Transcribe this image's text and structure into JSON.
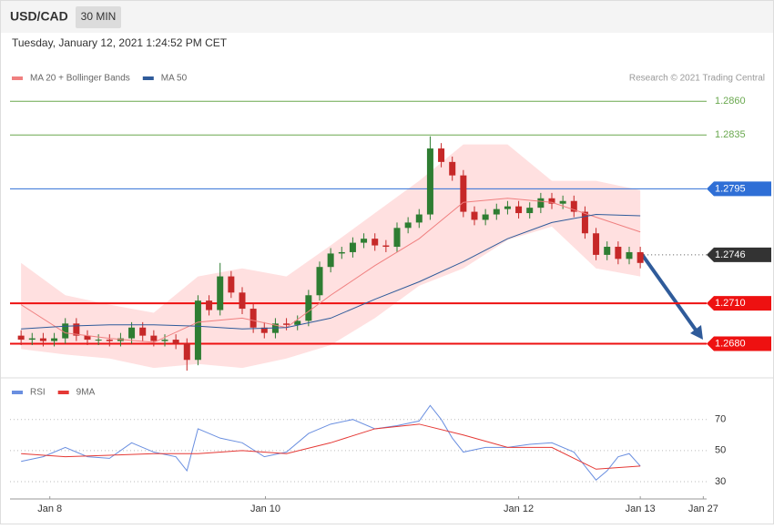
{
  "header": {
    "symbol": "USD/CAD",
    "interval": "30 MIN",
    "timestamp": "Tuesday, January 12, 2021 1:24:52 PM CET",
    "credit": "Research © 2021 Trading Central"
  },
  "chart_data": [
    {
      "type": "candlestick",
      "xlim": [
        -1,
        62
      ],
      "ylim": [
        1.2656,
        1.2869
      ],
      "up_color": "#2e7d32",
      "down_color": "#c62828",
      "open": [
        1.2686,
        1.2683,
        1.2684,
        1.2682,
        1.2684,
        1.2695,
        1.2686,
        1.2683,
        1.2683,
        1.2682,
        1.2684,
        1.2692,
        1.2686,
        1.2682,
        1.2683,
        1.268,
        1.2668,
        1.2712,
        1.2705,
        1.273,
        1.2718,
        1.2706,
        1.2692,
        1.2688,
        1.2695,
        1.2694,
        1.2697,
        1.2716,
        1.2737,
        1.2747,
        1.2748,
        1.2755,
        1.2758,
        1.2753,
        1.2752,
        1.2766,
        1.277,
        1.2776,
        1.2825,
        1.2815,
        1.2805,
        1.2778,
        1.2772,
        1.2776,
        1.278,
        1.2782,
        1.2777,
        1.2781,
        1.2788,
        1.2784,
        1.2786,
        1.2778,
        1.2762,
        1.2746,
        1.2752,
        1.2743,
        1.2748
      ],
      "high": [
        1.269,
        1.2688,
        1.2688,
        1.2688,
        1.2699,
        1.2699,
        1.269,
        1.2687,
        1.2687,
        1.2688,
        1.2696,
        1.2696,
        1.269,
        1.2687,
        1.2687,
        1.2684,
        1.2716,
        1.2716,
        1.274,
        1.2734,
        1.2722,
        1.271,
        1.2696,
        1.2699,
        1.2699,
        1.2701,
        1.272,
        1.2741,
        1.2751,
        1.2752,
        1.2759,
        1.2762,
        1.2762,
        1.2757,
        1.277,
        1.2774,
        1.278,
        1.2834,
        1.2829,
        1.2819,
        1.2809,
        1.2782,
        1.278,
        1.2784,
        1.2786,
        1.2786,
        1.2785,
        1.2792,
        1.2792,
        1.279,
        1.279,
        1.2782,
        1.2766,
        1.2756,
        1.2756,
        1.2752,
        1.2752
      ],
      "low": [
        1.2679,
        1.2679,
        1.2678,
        1.2678,
        1.268,
        1.2682,
        1.2679,
        1.2679,
        1.2678,
        1.2678,
        1.268,
        1.2682,
        1.2678,
        1.2678,
        1.2676,
        1.266,
        1.2664,
        1.2701,
        1.2701,
        1.2714,
        1.2702,
        1.2688,
        1.2684,
        1.2684,
        1.269,
        1.269,
        1.2693,
        1.2712,
        1.2733,
        1.2743,
        1.2744,
        1.2751,
        1.2749,
        1.2748,
        1.2748,
        1.2762,
        1.2766,
        1.2772,
        1.2811,
        1.2801,
        1.2774,
        1.2768,
        1.2768,
        1.2772,
        1.2776,
        1.2773,
        1.2773,
        1.2777,
        1.278,
        1.278,
        1.2774,
        1.2758,
        1.2742,
        1.2742,
        1.2739,
        1.2739,
        1.2736
      ],
      "close": [
        1.2683,
        1.2684,
        1.2682,
        1.2684,
        1.2695,
        1.2686,
        1.2683,
        1.2683,
        1.2682,
        1.2684,
        1.2692,
        1.2686,
        1.2682,
        1.2683,
        1.268,
        1.2668,
        1.2712,
        1.2705,
        1.273,
        1.2718,
        1.2706,
        1.2692,
        1.2688,
        1.2695,
        1.2694,
        1.2697,
        1.2716,
        1.2737,
        1.2747,
        1.2748,
        1.2755,
        1.2758,
        1.2753,
        1.2752,
        1.2766,
        1.277,
        1.2776,
        1.2825,
        1.2815,
        1.2805,
        1.2778,
        1.2772,
        1.2776,
        1.278,
        1.2782,
        1.2777,
        1.2781,
        1.2788,
        1.2784,
        1.2786,
        1.2778,
        1.2762,
        1.2746,
        1.2752,
        1.2743,
        1.2748,
        1.274
      ],
      "line_x": [
        0,
        4,
        8,
        12,
        16,
        20,
        24,
        28,
        32,
        36,
        40,
        44,
        48,
        52,
        56
      ],
      "series": [
        {
          "name": "MA 20 + Bollinger Bands",
          "color": "#f08080",
          "values": [
            1.2709,
            1.2688,
            1.2684,
            1.2681,
            1.2696,
            1.2699,
            1.2692,
            1.2716,
            1.2738,
            1.2758,
            1.2785,
            1.2788,
            1.2785,
            1.2774,
            1.2763
          ]
        },
        {
          "name": "MA 50",
          "color": "#2f5b9a",
          "values": [
            1.2691,
            1.2693,
            1.2694,
            1.2694,
            1.2693,
            1.2691,
            1.2692,
            1.2699,
            1.2713,
            1.2726,
            1.2741,
            1.2758,
            1.277,
            1.2776,
            1.2775
          ]
        }
      ],
      "bands": {
        "color": "#ffe0e0",
        "upper": [
          1.274,
          1.2716,
          1.2709,
          1.2703,
          1.273,
          1.2736,
          1.273,
          1.2753,
          1.2777,
          1.2801,
          1.2828,
          1.2828,
          1.2801,
          1.2801,
          1.2794
        ],
        "lower": [
          1.2676,
          1.2672,
          1.2669,
          1.2662,
          1.2665,
          1.2662,
          1.2669,
          1.2679,
          1.2699,
          1.2723,
          1.2736,
          1.2757,
          1.2767,
          1.2736,
          1.273
        ]
      },
      "levels": [
        {
          "value": 1.286,
          "label": "1.2860",
          "color": "#6aa84f",
          "boxed": false
        },
        {
          "value": 1.2835,
          "label": "1.2835",
          "color": "#6aa84f",
          "boxed": false
        },
        {
          "value": 1.2795,
          "label": "1.2795",
          "color": "#2f6fd6",
          "boxed": true
        },
        {
          "value": 1.2746,
          "label": "1.2746",
          "color": "#333333",
          "boxed": true
        },
        {
          "value": 1.271,
          "label": "1.2710",
          "color": "#ee1111",
          "boxed": true
        },
        {
          "value": 1.268,
          "label": "1.2680",
          "color": "#ee1111",
          "boxed": true
        }
      ],
      "xticks": [
        {
          "value": 2.6,
          "label": "Jan 8"
        },
        {
          "value": 22.1,
          "label": "Jan 10"
        },
        {
          "value": 45,
          "label": "Jan 12"
        },
        {
          "value": 56,
          "label": "Jan 13"
        },
        {
          "value": 61.7,
          "label": "Jan 27"
        }
      ]
    },
    {
      "type": "line",
      "xlim": [
        -1,
        62
      ],
      "ylim": [
        20,
        88
      ],
      "yticks": [
        30,
        50,
        70
      ],
      "series": [
        {
          "name": "RSI",
          "color": "#6a8fe0",
          "x": [
            0,
            2,
            4,
            6,
            8,
            10,
            12,
            14,
            15,
            16,
            18,
            20,
            22,
            24,
            26,
            28,
            30,
            32,
            34,
            36,
            37,
            38,
            39,
            40,
            42,
            44,
            46,
            48,
            50,
            51,
            52,
            53,
            54,
            55,
            56
          ],
          "values": [
            43,
            46,
            52,
            46,
            45,
            55,
            49,
            46,
            37,
            64,
            58,
            55,
            46,
            49,
            61,
            67,
            70,
            64,
            66,
            69,
            79,
            70,
            58,
            49,
            52,
            52,
            54,
            55,
            49,
            40,
            31,
            37,
            46,
            48,
            40
          ]
        },
        {
          "name": "9MA",
          "color": "#e53935",
          "x": [
            0,
            4,
            8,
            12,
            16,
            20,
            24,
            28,
            32,
            36,
            40,
            44,
            48,
            52,
            56
          ],
          "values": [
            48,
            46,
            47,
            48,
            48,
            50,
            48,
            55,
            64,
            67,
            60,
            52,
            52,
            38,
            40
          ]
        }
      ]
    }
  ]
}
